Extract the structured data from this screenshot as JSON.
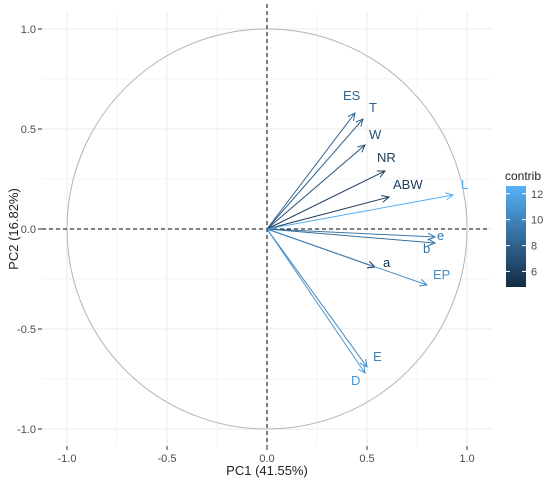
{
  "chart_data": {
    "type": "pca-correlation-circle",
    "title": "",
    "xlabel": "PC1 (41.55%)",
    "ylabel": "PC2 (16.82%)",
    "xlim": [
      -1.0,
      1.0
    ],
    "ylim": [
      -1.0,
      1.0
    ],
    "x_ticks": [
      "-1.0",
      "-0.5",
      "0.0",
      "0.5",
      "1.0"
    ],
    "y_ticks": [
      "1.0",
      "0.5",
      "0.0",
      "-0.5",
      "-1.0"
    ],
    "grid": true,
    "unit_circle": true,
    "legend": {
      "title": "contrib",
      "position": "right",
      "min": 4.8,
      "max": 12.6,
      "ticks": [
        "12",
        "10",
        "8",
        "6"
      ],
      "color_low": "#132B43",
      "color_high": "#56B1F7"
    },
    "variables": [
      {
        "label": "ES",
        "x": 0.44,
        "y": 0.58,
        "contrib": 8.2
      },
      {
        "label": "T",
        "x": 0.48,
        "y": 0.55,
        "contrib": 8.0
      },
      {
        "label": "W",
        "x": 0.49,
        "y": 0.42,
        "contrib": 7.0
      },
      {
        "label": "NR",
        "x": 0.59,
        "y": 0.29,
        "contrib": 6.0
      },
      {
        "label": "ABW",
        "x": 0.61,
        "y": 0.16,
        "contrib": 5.8
      },
      {
        "label": "L",
        "x": 0.93,
        "y": 0.17,
        "contrib": 12.5
      },
      {
        "label": "e",
        "x": 0.84,
        "y": -0.04,
        "contrib": 9.3
      },
      {
        "label": "b",
        "x": 0.84,
        "y": -0.07,
        "contrib": 8.8
      },
      {
        "label": "a",
        "x": 0.54,
        "y": -0.19,
        "contrib": 4.9
      },
      {
        "label": "EP",
        "x": 0.8,
        "y": -0.28,
        "contrib": 10.5
      },
      {
        "label": "E",
        "x": 0.5,
        "y": -0.69,
        "contrib": 10.0
      },
      {
        "label": "D",
        "x": 0.49,
        "y": -0.72,
        "contrib": 11.0
      }
    ]
  }
}
